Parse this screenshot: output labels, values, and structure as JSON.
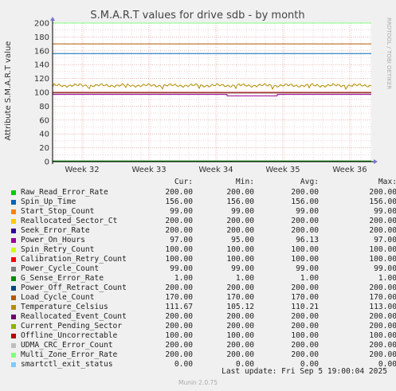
{
  "chart_data": {
    "type": "line",
    "title": "S.M.A.R.T values for drive sdb - by month",
    "ylabel": "Attribute S.M.A.R.T value",
    "ylim": [
      0,
      200
    ],
    "yticks": [
      0,
      20,
      40,
      60,
      80,
      100,
      120,
      140,
      160,
      180,
      200
    ],
    "xtick_labels": [
      "Week 32",
      "Week 33",
      "Week 34",
      "Week 35",
      "Week 36"
    ],
    "side_label": "RRDTOOL / TOBI OETIKER",
    "legend_headers": [
      "Cur:",
      "Min:",
      "Avg:",
      "Max:"
    ],
    "series": [
      {
        "name": "Raw_Read_Error_Rate",
        "color": "#00cc00",
        "cur": "200.00",
        "min": "200.00",
        "avg": "200.00",
        "max": "200.00",
        "level": 200,
        "pattern": "flat"
      },
      {
        "name": "Spin_Up_Time",
        "color": "#0066b3",
        "cur": "156.00",
        "min": "156.00",
        "avg": "156.00",
        "max": "156.00",
        "level": 156,
        "pattern": "flat"
      },
      {
        "name": "Start_Stop_Count",
        "color": "#ff8000",
        "cur": "99.00",
        "min": "99.00",
        "avg": "99.00",
        "max": "99.00",
        "level": 99,
        "pattern": "flat"
      },
      {
        "name": "Reallocated_Sector_Ct",
        "color": "#ffcc00",
        "cur": "200.00",
        "min": "200.00",
        "avg": "200.00",
        "max": "200.00",
        "level": 200,
        "pattern": "flat"
      },
      {
        "name": "Seek_Error_Rate",
        "color": "#330099",
        "cur": "200.00",
        "min": "200.00",
        "avg": "200.00",
        "max": "200.00",
        "level": 200,
        "pattern": "flat"
      },
      {
        "name": "Power_On_Hours",
        "color": "#990099",
        "cur": "97.00",
        "min": "95.00",
        "avg": "96.13",
        "max": "97.00",
        "level": 97,
        "pattern": "step"
      },
      {
        "name": "Spin_Retry_Count",
        "color": "#ccff00",
        "cur": "100.00",
        "min": "100.00",
        "avg": "100.00",
        "max": "100.00",
        "level": 100,
        "pattern": "flat"
      },
      {
        "name": "Calibration_Retry_Count",
        "color": "#ff0000",
        "cur": "100.00",
        "min": "100.00",
        "avg": "100.00",
        "max": "100.00",
        "level": 100,
        "pattern": "flat"
      },
      {
        "name": "Power_Cycle_Count",
        "color": "#808080",
        "cur": "99.00",
        "min": "99.00",
        "avg": "99.00",
        "max": "99.00",
        "level": 99,
        "pattern": "flat"
      },
      {
        "name": "G_Sense_Error_Rate",
        "color": "#008f00",
        "cur": "1.00",
        "min": "1.00",
        "avg": "1.00",
        "max": "1.00",
        "level": 1,
        "pattern": "flat"
      },
      {
        "name": "Power_Off_Retract_Count",
        "color": "#00487d",
        "cur": "200.00",
        "min": "200.00",
        "avg": "200.00",
        "max": "200.00",
        "level": 200,
        "pattern": "flat"
      },
      {
        "name": "Load_Cycle_Count",
        "color": "#b35a00",
        "cur": "170.00",
        "min": "170.00",
        "avg": "170.00",
        "max": "170.00",
        "level": 170,
        "pattern": "flat"
      },
      {
        "name": "Temperature_Celsius",
        "color": "#b38f00",
        "cur": "111.67",
        "min": "105.12",
        "avg": "110.21",
        "max": "113.00",
        "level": 110,
        "pattern": "wave"
      },
      {
        "name": "Reallocated_Event_Count",
        "color": "#6b006b",
        "cur": "200.00",
        "min": "200.00",
        "avg": "200.00",
        "max": "200.00",
        "level": 200,
        "pattern": "flat"
      },
      {
        "name": "Current_Pending_Sector",
        "color": "#8fb300",
        "cur": "200.00",
        "min": "200.00",
        "avg": "200.00",
        "max": "200.00",
        "level": 200,
        "pattern": "flat"
      },
      {
        "name": "Offline_Uncorrectable",
        "color": "#b30000",
        "cur": "100.00",
        "min": "100.00",
        "avg": "100.00",
        "max": "100.00",
        "level": 100,
        "pattern": "flat"
      },
      {
        "name": "UDMA_CRC_Error_Count",
        "color": "#bebebe",
        "cur": "200.00",
        "min": "200.00",
        "avg": "200.00",
        "max": "200.00",
        "level": 200,
        "pattern": "flat"
      },
      {
        "name": "Multi_Zone_Error_Rate",
        "color": "#80ff80",
        "cur": "200.00",
        "min": "200.00",
        "avg": "200.00",
        "max": "200.00",
        "level": 200,
        "pattern": "flat"
      },
      {
        "name": "smartctl_exit_status",
        "color": "#80c9ff",
        "cur": "0.00",
        "min": "0.00",
        "avg": "0.00",
        "max": "0.00",
        "level": 0,
        "pattern": "flat"
      }
    ]
  },
  "footer": {
    "last_update": "Last update: Fri Sep  5 19:00:04 2025",
    "munin_version": "Munin 2.0.75"
  }
}
